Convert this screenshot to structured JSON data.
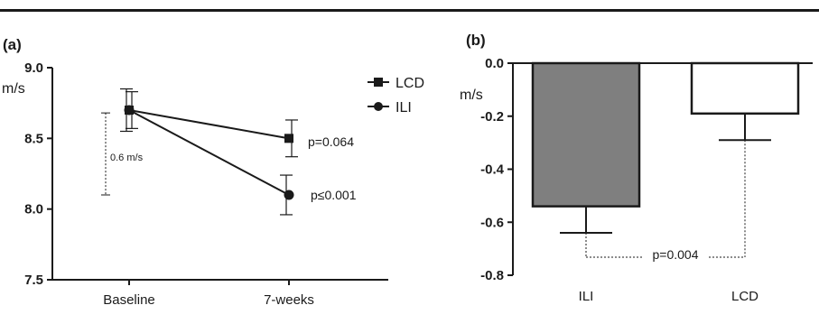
{
  "chart_data": [
    {
      "panel": "(a)",
      "type": "line",
      "categories": [
        "Baseline",
        "7-weeks"
      ],
      "ylabel": "m/s",
      "ylim": [
        7.5,
        9.0
      ],
      "yticks": [
        "9.0",
        "8.5",
        "8.0",
        "7.5"
      ],
      "grid": false,
      "legend_position": "top-right",
      "series": [
        {
          "name": "LCD",
          "marker": "square",
          "values": [
            8.7,
            8.5
          ],
          "error": [
            0.13,
            0.13
          ]
        },
        {
          "name": "ILI",
          "marker": "circle",
          "values": [
            8.7,
            8.1
          ],
          "error": [
            0.15,
            0.14
          ]
        }
      ],
      "annotations": {
        "bracket_label": "0.6 m/s",
        "bracket_range": [
          8.1,
          8.68
        ],
        "p_lcd": "p=0.064",
        "p_ili": "p≤0.001"
      }
    },
    {
      "panel": "(b)",
      "type": "bar",
      "categories": [
        "ILI",
        "LCD"
      ],
      "ylabel": "m/s",
      "ylim": [
        -0.8,
        0.0
      ],
      "yticks": [
        "0.0",
        "-0.2",
        "-0.4",
        "-0.6",
        "-0.8"
      ],
      "grid": false,
      "values": [
        -0.54,
        -0.19
      ],
      "error": [
        0.1,
        0.1
      ],
      "bar_colors": [
        "#7f7f7f",
        "#ffffff"
      ],
      "annotations": {
        "p_value": "p=0.004"
      }
    }
  ]
}
